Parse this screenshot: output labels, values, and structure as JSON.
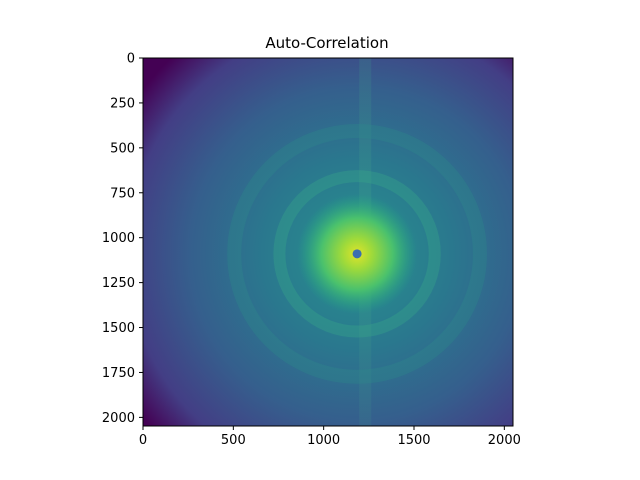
{
  "chart_data": {
    "type": "heatmap",
    "title": "Auto-Correlation",
    "colormap": "viridis",
    "x_range": [
      0,
      2048
    ],
    "y_range": [
      2048,
      0
    ],
    "x_ticks": [
      0,
      500,
      1000,
      1500,
      2000
    ],
    "y_ticks": [
      0,
      250,
      500,
      750,
      1000,
      1250,
      1500,
      1750,
      2000
    ],
    "grid": false,
    "peak_point": {
      "x": 1185,
      "y": 1090,
      "color": "#3a6fb0"
    },
    "intensity_field": {
      "center": {
        "x": 1185,
        "y": 1090
      },
      "ring_radii": [
        430,
        680
      ],
      "center_level": 0.95,
      "corner_level": 0.03,
      "streak_x": 1230
    }
  }
}
